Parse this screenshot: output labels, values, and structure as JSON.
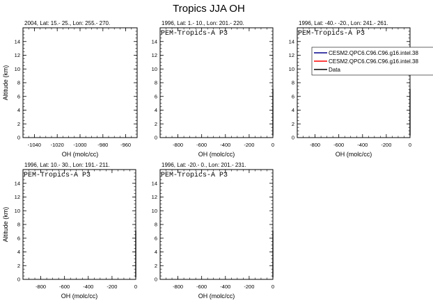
{
  "figure": {
    "title": "Tropics JJA OH"
  },
  "chart_data": [
    {
      "type": "line",
      "title": "2004, Lat: 15.- 25., Lon: 255.- 270.",
      "annotation": "",
      "xlabel": "OH (molc/cc)",
      "ylabel": "Altitude (km)",
      "xlim": [
        -1050,
        -950
      ],
      "ylim": [
        0,
        16
      ],
      "xticks": [
        -1040,
        -1020,
        -1000,
        -980,
        -960
      ],
      "xtick_labels": [
        "-1040",
        "-1020",
        "-1000",
        "-980",
        "-960"
      ],
      "yticks": [
        0,
        2,
        4,
        6,
        8,
        10,
        12,
        14
      ],
      "ytick_labels": [
        "0",
        "2",
        "4",
        "6",
        "8",
        "10",
        "12",
        "14"
      ],
      "series": []
    },
    {
      "type": "line",
      "title": "1996, Lat: 1.- 10., Lon: 201.- 220.",
      "annotation": "PEM-Tropics-A P3",
      "xlabel": "OH (molc/cc)",
      "ylabel": "",
      "xlim": [
        -950,
        0
      ],
      "ylim": [
        0,
        16
      ],
      "xticks": [
        -800,
        -600,
        -400,
        -200,
        0
      ],
      "xtick_labels": [
        "-800",
        "-600",
        "-400",
        "-200",
        "0"
      ],
      "yticks": [
        0,
        2,
        4,
        6,
        8,
        10,
        12,
        14
      ],
      "ytick_labels": [
        "0",
        "2",
        "4",
        "6",
        "8",
        "10",
        "12",
        "14"
      ],
      "series": [
        {
          "color": "#000000",
          "x": [
            0,
            0
          ],
          "y": [
            0.3,
            7.1
          ]
        }
      ]
    },
    {
      "type": "line",
      "title": "1996, Lat: -40.- -20., Lon: 241.- 261.",
      "annotation": "PEM-Tropics-A P3",
      "xlabel": "OH (molc/cc)",
      "ylabel": "",
      "xlim": [
        -950,
        0
      ],
      "ylim": [
        0,
        16
      ],
      "xticks": [
        -800,
        -600,
        -400,
        -200,
        0
      ],
      "xtick_labels": [
        "-800",
        "-600",
        "-400",
        "-200",
        "0"
      ],
      "yticks": [
        0,
        2,
        4,
        6,
        8,
        10,
        12,
        14
      ],
      "ytick_labels": [
        "0",
        "2",
        "4",
        "6",
        "8",
        "10",
        "12",
        "14"
      ],
      "legend": [
        {
          "label": "CESM2.QPC6.C96.C96.g16.intel.38",
          "color": "#00008b"
        },
        {
          "label": "CESM2.QPC6.C96.C96.g16.intel.38",
          "color": "#ff0000"
        },
        {
          "label": "Data",
          "color": "#000000"
        }
      ],
      "series": [
        {
          "name": "Data",
          "color": "#000000",
          "x": [
            0,
            0
          ],
          "y": [
            0.3,
            7.1
          ]
        }
      ]
    },
    {
      "type": "line",
      "title": "1996, Lat: 10.- 30., Lon: 191.- 211.",
      "annotation": "PEM-Tropics-A P3",
      "xlabel": "OH (molc/cc)",
      "ylabel": "Altitude (km)",
      "xlim": [
        -950,
        0
      ],
      "ylim": [
        0,
        16
      ],
      "xticks": [
        -800,
        -600,
        -400,
        -200,
        0
      ],
      "xtick_labels": [
        "-800",
        "-600",
        "-400",
        "-200",
        "0"
      ],
      "yticks": [
        0,
        2,
        4,
        6,
        8,
        10,
        12,
        14
      ],
      "ytick_labels": [
        "0",
        "2",
        "4",
        "6",
        "8",
        "10",
        "12",
        "14"
      ],
      "series": [
        {
          "color": "#000000",
          "x": [
            0,
            0
          ],
          "y": [
            0.3,
            7.1
          ]
        }
      ]
    },
    {
      "type": "line",
      "title": "1996, Lat: -20.- 0., Lon: 201.- 231.",
      "annotation": "PEM-Tropics-A P3",
      "xlabel": "OH (molc/cc)",
      "ylabel": "",
      "xlim": [
        -950,
        0
      ],
      "ylim": [
        0,
        16
      ],
      "xticks": [
        -800,
        -600,
        -400,
        -200,
        0
      ],
      "xtick_labels": [
        "-800",
        "-600",
        "-400",
        "-200",
        "0"
      ],
      "yticks": [
        0,
        2,
        4,
        6,
        8,
        10,
        12,
        14
      ],
      "ytick_labels": [
        "0",
        "2",
        "4",
        "6",
        "8",
        "10",
        "12",
        "14"
      ],
      "series": [
        {
          "color": "#000000",
          "x": [
            0,
            0
          ],
          "y": [
            0.3,
            7.1
          ]
        }
      ]
    }
  ]
}
